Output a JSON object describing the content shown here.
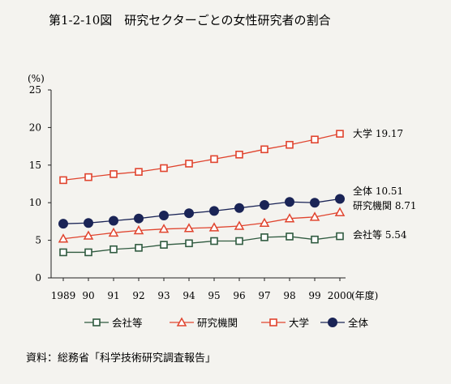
{
  "figure": {
    "title": "第1-2-10図　研究セクターごとの女性研究者の割合",
    "y_unit": "(%)",
    "x_unit": "(年度)",
    "source": "資料：総務省「科学技術研究調査報告」"
  },
  "chart_data": {
    "type": "line",
    "title": "第1-2-10図　研究セクターごとの女性研究者の割合",
    "xlabel": "(年度)",
    "ylabel": "(%)",
    "ylim": [
      0,
      25
    ],
    "yticks": [
      0,
      5,
      10,
      15,
      20,
      25
    ],
    "grid": false,
    "legend_position": "bottom",
    "x": [
      "1989",
      "90",
      "91",
      "92",
      "93",
      "94",
      "95",
      "96",
      "97",
      "98",
      "99",
      "2000"
    ],
    "series": [
      {
        "name": "会社等",
        "marker": "square-open",
        "color": "#2f5a3f",
        "values": [
          3.4,
          3.4,
          3.8,
          4.0,
          4.4,
          4.6,
          4.9,
          4.9,
          5.4,
          5.5,
          5.1,
          5.54
        ],
        "end_label": "会社等 5.54"
      },
      {
        "name": "研究機関",
        "marker": "triangle-open",
        "color": "#e0442e",
        "values": [
          5.2,
          5.6,
          6.0,
          6.3,
          6.5,
          6.6,
          6.7,
          6.9,
          7.3,
          7.9,
          8.1,
          8.71
        ],
        "end_label": "研究機関 8.71"
      },
      {
        "name": "大学",
        "marker": "square-open",
        "color": "#e0442e",
        "values": [
          13.0,
          13.4,
          13.8,
          14.1,
          14.6,
          15.2,
          15.8,
          16.4,
          17.1,
          17.7,
          18.4,
          19.17
        ],
        "end_label": "大学 19.17"
      },
      {
        "name": "全体",
        "marker": "circle-filled",
        "color": "#1a2456",
        "values": [
          7.2,
          7.3,
          7.6,
          7.9,
          8.3,
          8.6,
          8.9,
          9.3,
          9.7,
          10.1,
          10.0,
          10.51
        ],
        "end_label": "全体 10.51"
      }
    ]
  }
}
